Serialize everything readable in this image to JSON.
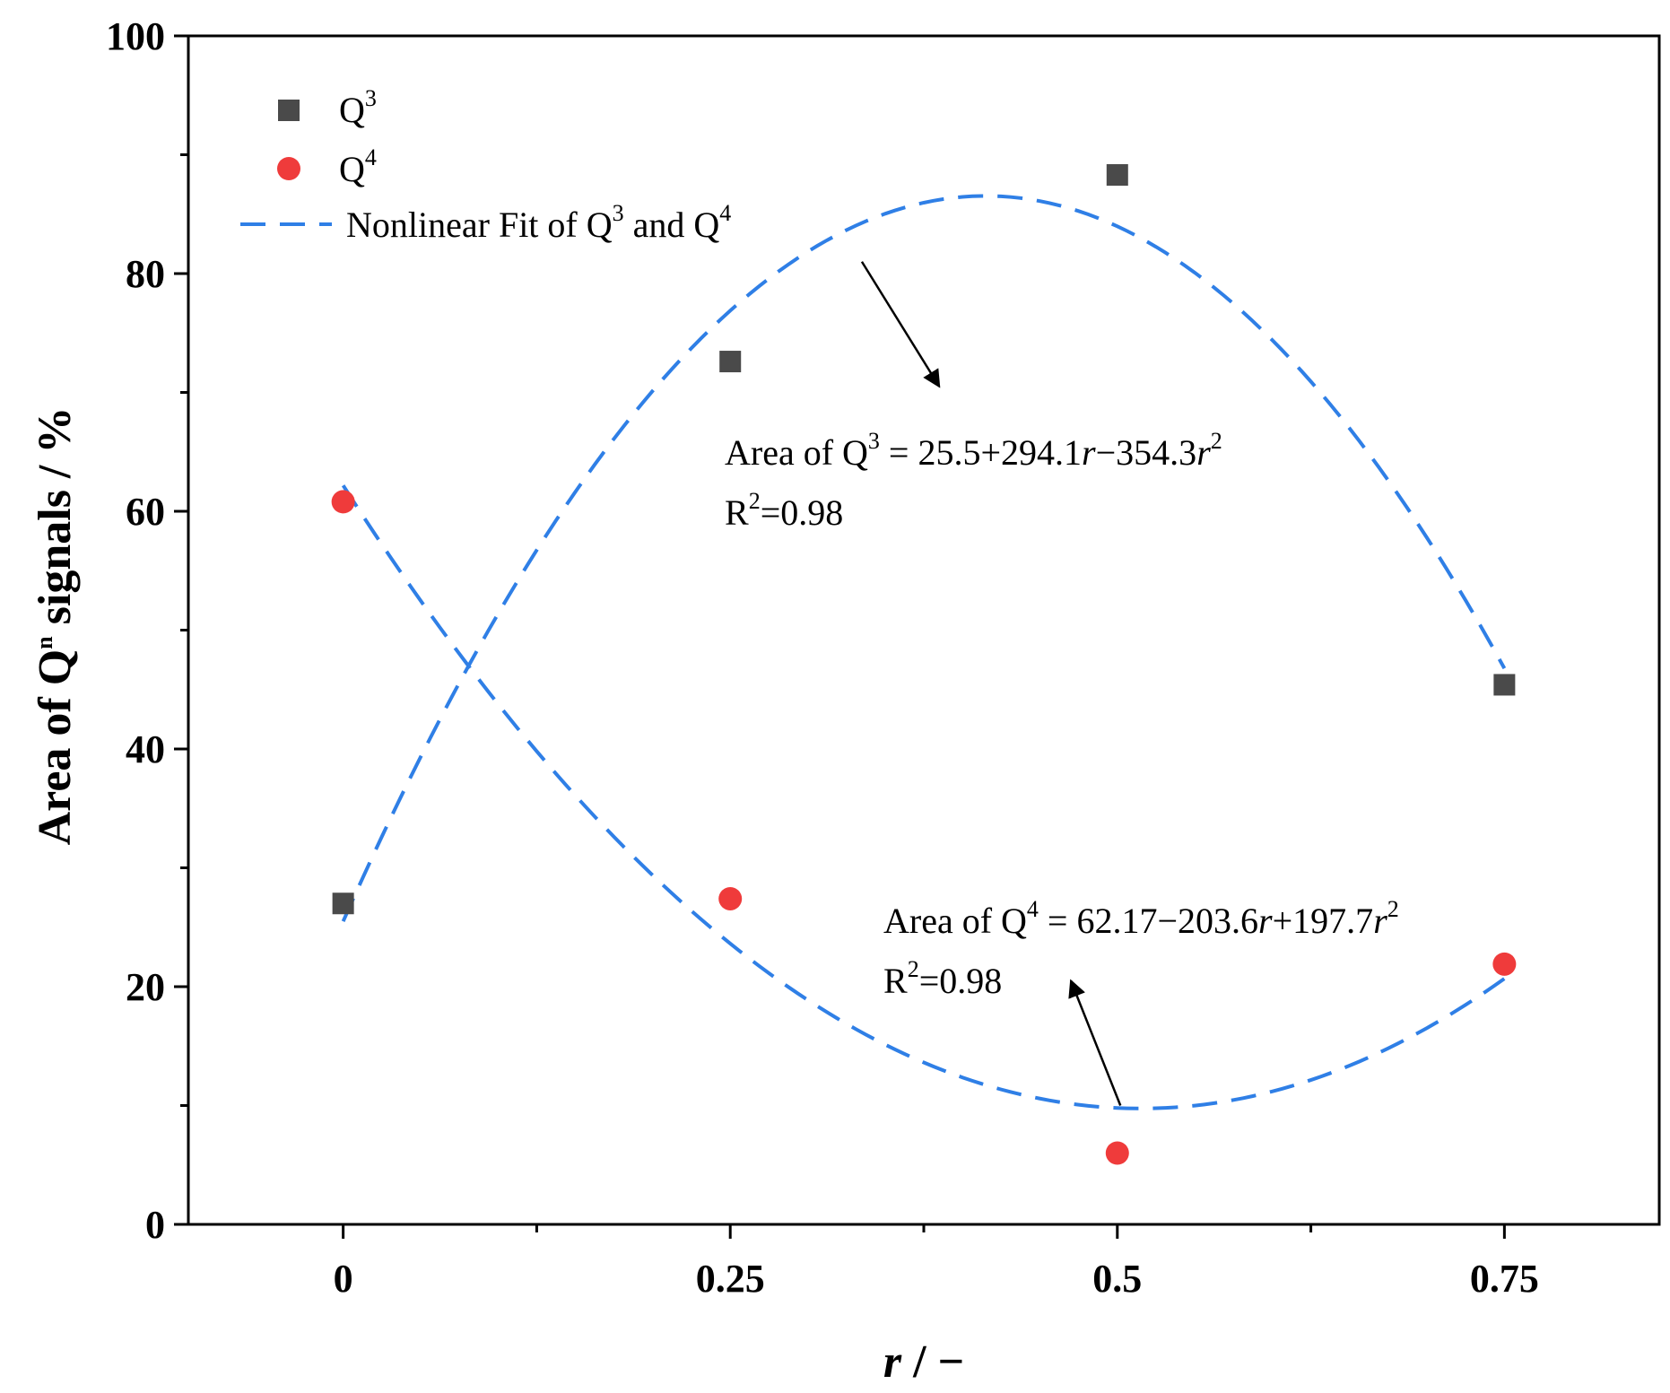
{
  "chart_data": {
    "type": "scatter",
    "title": "",
    "xlabel": "r / −",
    "ylabel": "Area of Qⁿ signals / %",
    "xlim": [
      -0.1,
      0.85
    ],
    "ylim": [
      0,
      100
    ],
    "x_ticks": [
      0,
      0.25,
      0.5,
      0.75
    ],
    "x_tick_labels": [
      "0",
      "0.25",
      "0.5",
      "0.75"
    ],
    "x_minor_ticks": [
      0.125,
      0.375,
      0.625
    ],
    "y_ticks": [
      0,
      20,
      40,
      60,
      80,
      100
    ],
    "y_tick_labels": [
      "0",
      "20",
      "40",
      "60",
      "80",
      "100"
    ],
    "y_minor_ticks": [
      10,
      30,
      50,
      70,
      90
    ],
    "grid": false,
    "legend_position": "top-left",
    "series": [
      {
        "name": "Q3",
        "label": "Q",
        "label_sup": "3",
        "marker": "square",
        "color": "#4a4a4a",
        "x": [
          0,
          0.25,
          0.5,
          0.75
        ],
        "y": [
          27,
          72.6,
          88.3,
          45.4
        ]
      },
      {
        "name": "Q4",
        "label": "Q",
        "label_sup": "4",
        "marker": "circle",
        "color": "#ef3b3b",
        "x": [
          0,
          0.25,
          0.5,
          0.75
        ],
        "y": [
          60.8,
          27.4,
          6,
          21.9
        ]
      }
    ],
    "fits": [
      {
        "name": "fit-q3",
        "color": "#2f7fe6",
        "coefficients": [
          25.5,
          294.1,
          -354.3
        ],
        "x_range": [
          0,
          0.75
        ]
      },
      {
        "name": "fit-q4",
        "color": "#2f7fe6",
        "coefficients": [
          62.17,
          -203.6,
          197.7
        ],
        "x_range": [
          0,
          0.75
        ]
      }
    ],
    "fit_legend": {
      "text_a": "Nonlinear Fit of Q",
      "sup_a": "3",
      "text_b": " and Q",
      "sup_b": "4"
    },
    "annotations": [
      {
        "name": "q3",
        "eq_a": "Area  of Q",
        "eq_sup": "3",
        "eq_b": " = 25.5+294.1",
        "eq_var1": "r",
        "eq_c": "−354.3",
        "eq_var2": "r",
        "eq_sup2": "2",
        "r2_a": "R",
        "r2_sup": "2",
        "r2_b": "=0.98",
        "arrow_from": [
          0.335,
          81
        ],
        "arrow_to": [
          0.385,
          70.5
        ]
      },
      {
        "name": "q4",
        "eq_a": "Area of Q",
        "eq_sup": "4",
        "eq_b": " = 62.17−203.6",
        "eq_var1": "r",
        "eq_c": "+197.7",
        "eq_var2": "r",
        "eq_sup2": "2",
        "r2_a": "R",
        "r2_sup": "2",
        "r2_b": "=0.98",
        "arrow_from": [
          0.502,
          10
        ],
        "arrow_to": [
          0.47,
          20.5
        ]
      }
    ]
  }
}
